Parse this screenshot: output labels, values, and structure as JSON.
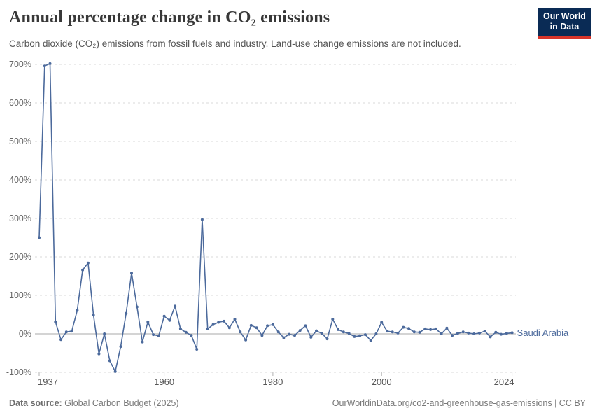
{
  "header": {
    "title": "Annual percentage change in CO₂ emissions",
    "subtitle": "Carbon dioxide (CO₂) emissions from fossil fuels and industry. Land-use change emissions are not included.",
    "logo": {
      "line1": "Our World",
      "line2": "in Data"
    }
  },
  "footer": {
    "source_label": "Data source:",
    "source_value": " Global Carbon Budget (2025)",
    "right_text": "OurWorldinData.org/co2-and-greenhouse-gas-emissions | CC BY"
  },
  "colors": {
    "line": "#4c6a9c",
    "grid": "#dadada",
    "zero_line": "#a8a8a8",
    "y_label": "#666666",
    "x_label": "#565656",
    "tick": "#b0b0b0",
    "logo_bg": "#0a2b55",
    "logo_strip": "#d8352a"
  },
  "chart_data": {
    "type": "line",
    "title": "Annual percentage change in CO₂ emissions",
    "entity_label": "Saudi Arabia",
    "xlim": [
      1937,
      2024
    ],
    "ylim": [
      -100,
      700
    ],
    "grid": "dashed-horizontal",
    "legend_position": "end-of-line",
    "x_ticks": [
      1937,
      1960,
      1980,
      2000,
      2024
    ],
    "y_ticks": [
      -100,
      0,
      100,
      200,
      300,
      400,
      500,
      600,
      700
    ],
    "y_tick_format": "{v}%",
    "series": [
      {
        "name": "Saudi Arabia",
        "x": [
          1937,
          1938,
          1939,
          1940,
          1941,
          1942,
          1943,
          1944,
          1945,
          1946,
          1947,
          1948,
          1949,
          1950,
          1951,
          1952,
          1953,
          1954,
          1955,
          1956,
          1957,
          1958,
          1959,
          1960,
          1961,
          1962,
          1963,
          1964,
          1965,
          1966,
          1967,
          1968,
          1969,
          1970,
          1971,
          1972,
          1973,
          1974,
          1975,
          1976,
          1977,
          1978,
          1979,
          1980,
          1981,
          1982,
          1983,
          1984,
          1985,
          1986,
          1987,
          1988,
          1989,
          1990,
          1991,
          1992,
          1993,
          1994,
          1995,
          1996,
          1997,
          1998,
          1999,
          2000,
          2001,
          2002,
          2003,
          2004,
          2005,
          2006,
          2007,
          2008,
          2009,
          2010,
          2011,
          2012,
          2013,
          2014,
          2015,
          2016,
          2017,
          2018,
          2019,
          2020,
          2021,
          2022,
          2023,
          2024
        ],
        "values": [
          250,
          696,
          702,
          31,
          -15,
          5,
          7,
          61,
          166,
          184,
          49,
          -52,
          0,
          -70,
          -98,
          -33,
          53,
          158,
          70,
          -21,
          31,
          -2,
          -5,
          46,
          35,
          72,
          13,
          4,
          -4,
          -40,
          297,
          13,
          24,
          30,
          33,
          16,
          38,
          5,
          -16,
          22,
          16,
          -4,
          21,
          24,
          5,
          -10,
          -1,
          -4,
          9,
          21,
          -9,
          8,
          1,
          -13,
          38,
          11,
          5,
          1,
          -7,
          -5,
          -2,
          -17,
          0,
          30,
          7,
          5,
          2,
          17,
          14,
          5,
          4,
          13,
          11,
          13,
          0,
          15,
          -4,
          1,
          5,
          2,
          0,
          2,
          7,
          -8,
          4,
          -1,
          1,
          3
        ]
      }
    ]
  }
}
